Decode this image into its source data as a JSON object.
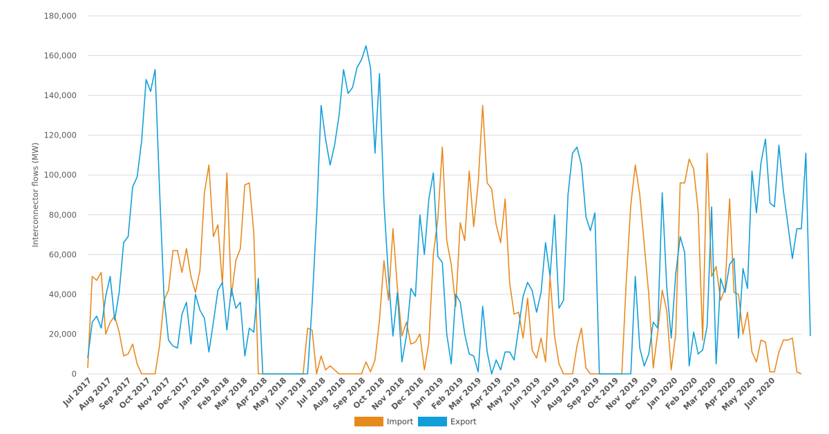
{
  "chart_data": {
    "type": "line",
    "ylabel": "Interconnector flows (MW)",
    "ylim": [
      0,
      180000
    ],
    "y_ticks": [
      0,
      20000,
      40000,
      60000,
      80000,
      100000,
      120000,
      140000,
      160000,
      180000
    ],
    "y_tick_labels": [
      "0",
      "20,000",
      "40,000",
      "60,000",
      "80,000",
      "100,000",
      "120,000",
      "140,000",
      "160,000",
      "180,000"
    ],
    "grid": true,
    "legend_position": "bottom-center",
    "x_start": "2017-07-01",
    "x_step": "week",
    "month_labels": [
      "Jul 2017",
      "Aug 2017",
      "Sep 2017",
      "Oct 2017",
      "Nov 2017",
      "Dec 2017",
      "Jan 2018",
      "Feb 2018",
      "Mar 2018",
      "Apr 2018",
      "May 2018",
      "Jun 2018",
      "Jul 2018",
      "Aug 2018",
      "Sep 2018",
      "Oct 2018",
      "Nov 2018",
      "Dec 2018",
      "Jan 2019",
      "Feb 2019",
      "Mar 2019",
      "Apr 2019",
      "May 2019",
      "Jun 2019",
      "Jul 2019",
      "Aug 2019",
      "Sep 2019",
      "Oct 2019",
      "Nov 2019",
      "Dec 2019",
      "Jan 2020",
      "Feb 2020",
      "Mar 2020",
      "Apr 2020",
      "May 2020",
      "Jun 2020"
    ],
    "series": [
      {
        "name": "Import",
        "color": "#e8891c",
        "values": [
          3000,
          49000,
          47000,
          51000,
          20000,
          26000,
          29000,
          21000,
          9000,
          10000,
          15000,
          5000,
          0,
          0,
          0,
          0,
          14000,
          37000,
          42000,
          62000,
          62000,
          51000,
          63000,
          49000,
          41000,
          52000,
          91000,
          105000,
          69000,
          75000,
          45000,
          101000,
          39000,
          57000,
          63000,
          95000,
          96000,
          71000,
          0,
          0,
          0,
          0,
          0,
          0,
          0,
          0,
          0,
          0,
          0,
          23000,
          22000,
          0,
          9000,
          2000,
          4000,
          2000,
          0,
          0,
          0,
          0,
          0,
          0,
          6000,
          1000,
          7000,
          27000,
          57000,
          37000,
          73000,
          43000,
          19000,
          26000,
          15000,
          16000,
          20000,
          2000,
          16000,
          60000,
          78000,
          114000,
          67000,
          55000,
          34000,
          76000,
          67000,
          102000,
          74000,
          96000,
          135000,
          96000,
          93000,
          75000,
          66000,
          88000,
          46000,
          30000,
          31000,
          18000,
          38000,
          12000,
          8000,
          18000,
          6000,
          49000,
          19000,
          5000,
          0,
          0,
          0,
          14000,
          23000,
          3000,
          0,
          0,
          0,
          0,
          0,
          0,
          0,
          0,
          47000,
          85000,
          105000,
          90000,
          65000,
          40000,
          3000,
          21000,
          42000,
          32000,
          2000,
          20000,
          96000,
          96000,
          108000,
          103000,
          82000,
          17000,
          111000,
          49000,
          54000,
          37000,
          43000,
          88000,
          41000,
          40000,
          20000,
          31000,
          11000,
          6000,
          17000,
          16000,
          1000,
          1000,
          11000,
          17000,
          17000,
          18000,
          1000,
          0
        ]
      },
      {
        "name": "Export",
        "color": "#119ed9",
        "values": [
          8000,
          26000,
          29000,
          23000,
          39000,
          49000,
          27000,
          41000,
          66000,
          69000,
          94000,
          99000,
          117000,
          148000,
          142000,
          153000,
          93000,
          39000,
          17000,
          14000,
          13000,
          30000,
          36000,
          15000,
          40000,
          32000,
          28000,
          11000,
          26000,
          42000,
          46000,
          22000,
          43000,
          33000,
          36000,
          9000,
          23000,
          21000,
          48000,
          0,
          0,
          0,
          0,
          0,
          0,
          0,
          0,
          0,
          0,
          0,
          35000,
          79000,
          135000,
          118000,
          105000,
          115000,
          130000,
          153000,
          141000,
          144000,
          154000,
          158000,
          165000,
          154000,
          111000,
          151000,
          86000,
          49000,
          19000,
          41000,
          6000,
          19000,
          43000,
          39000,
          80000,
          60000,
          88000,
          101000,
          59000,
          56000,
          20000,
          5000,
          40000,
          36000,
          20000,
          10000,
          9000,
          1000,
          34000,
          11000,
          0,
          7000,
          2000,
          11000,
          11000,
          7000,
          23000,
          39000,
          46000,
          42000,
          31000,
          41000,
          66000,
          49000,
          80000,
          33000,
          37000,
          90000,
          111000,
          114000,
          105000,
          79000,
          72000,
          81000,
          0,
          0,
          0,
          0,
          0,
          0,
          0,
          0,
          49000,
          13000,
          4000,
          10000,
          26000,
          23000,
          91000,
          44000,
          18000,
          50000,
          69000,
          61000,
          4000,
          21000,
          10000,
          12000,
          24000,
          84000,
          5000,
          48000,
          41000,
          55000,
          58000,
          18000,
          53000,
          43000,
          102000,
          81000,
          106000,
          118000,
          86000,
          84000,
          115000,
          92000,
          75000,
          58000,
          73000,
          73000,
          111000,
          19000
        ]
      }
    ]
  }
}
